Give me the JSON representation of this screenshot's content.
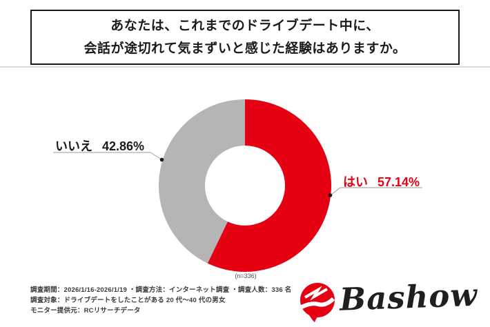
{
  "title": {
    "line1": "あなたは、これまでのドライブデート中に、",
    "line2": "会話が途切れて気まずいと感じた経験はありますか。"
  },
  "chart_data": {
    "type": "pie",
    "donut": true,
    "title": "あなたは、これまでのドライブデート中に、会話が途切れて気まずいと感じた経験はありますか。",
    "n": 336,
    "sample_label": "(n=336)",
    "start_angle": "top",
    "direction": "clockwise",
    "slices": [
      {
        "label": "はい",
        "value": 57.14,
        "display": "57.14%",
        "color": "#E50012"
      },
      {
        "label": "いいえ",
        "value": 42.86,
        "display": "42.86%",
        "color": "#B5B5B5"
      }
    ]
  },
  "footnote": {
    "line1": "調査期間：2026/1/16-2026/1/19 ・調査方法：インターネット調査 ・調査人数：336 名",
    "line2": "調査対象：ドライブデートをしたことがある 20 代〜40 代の男女",
    "line3": "モニター提供元：RCリサーチデータ"
  },
  "logo": {
    "text": "Bashow"
  },
  "colors": {
    "accent_red": "#E50012",
    "slice_gray": "#B5B5B5",
    "leader_line": "#9b9b9b",
    "text_dark": "#1a1a1a"
  }
}
